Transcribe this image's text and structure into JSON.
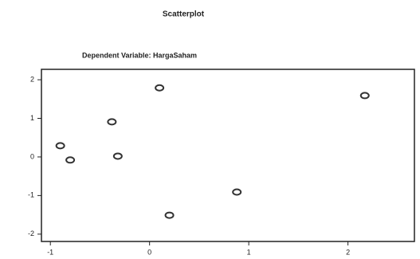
{
  "chart_data": {
    "type": "scatter",
    "title": "Scatterplot",
    "subtitle": "Dependent Variable: HargaSaham",
    "x": [
      0.1,
      2.17,
      -0.38,
      -0.9,
      -0.8,
      -0.32,
      0.88,
      0.2
    ],
    "values": [
      1.79,
      1.59,
      0.91,
      0.29,
      -0.08,
      0.02,
      -0.91,
      -1.51
    ],
    "color": "#333333",
    "xlim": [
      -1.09,
      2.67
    ],
    "xticks": [
      -1,
      0,
      1,
      2
    ],
    "ylim": [
      -2.19,
      2.27
    ],
    "yticks": [
      2,
      1,
      0,
      -1,
      -2
    ]
  }
}
